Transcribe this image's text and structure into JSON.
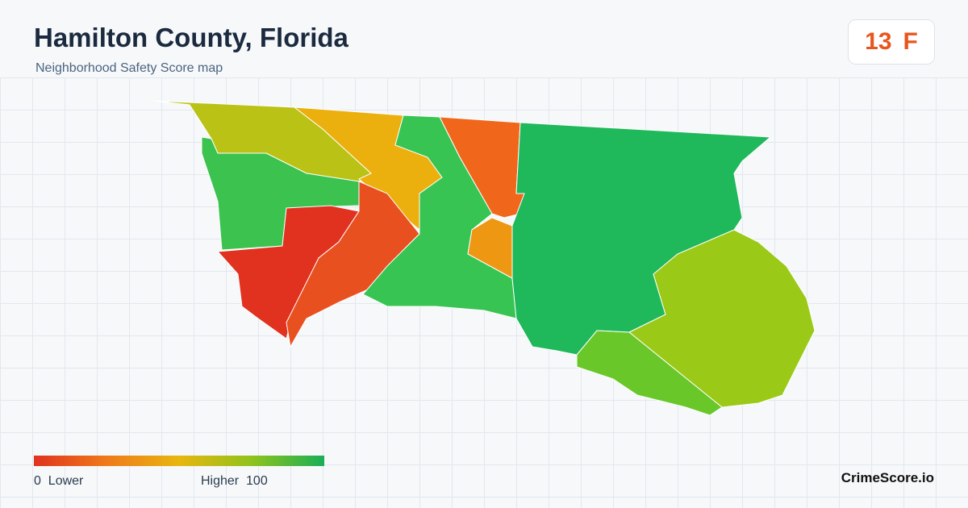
{
  "header": {
    "title": "Hamilton County, Florida",
    "subtitle": "Neighborhood Safety Score map"
  },
  "score": {
    "value": 13,
    "grade": "F"
  },
  "legend": {
    "min": 0,
    "min_label": "Lower",
    "max_label": "Higher",
    "max": 100
  },
  "brand": "CrimeScore.io"
}
